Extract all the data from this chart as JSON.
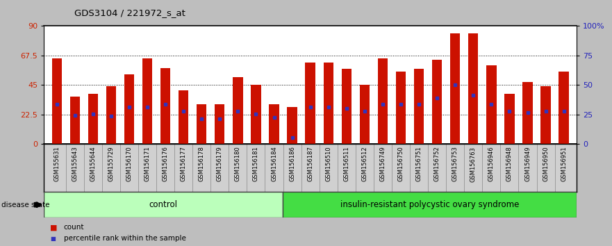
{
  "title": "GDS3104 / 221972_s_at",
  "samples": [
    "GSM155631",
    "GSM155643",
    "GSM155644",
    "GSM155729",
    "GSM156170",
    "GSM156171",
    "GSM156176",
    "GSM156177",
    "GSM156178",
    "GSM156179",
    "GSM156180",
    "GSM156181",
    "GSM156184",
    "GSM156186",
    "GSM156187",
    "GSM156510",
    "GSM156511",
    "GSM156512",
    "GSM156749",
    "GSM156750",
    "GSM156751",
    "GSM156752",
    "GSM156753",
    "GSM156763",
    "GSM156946",
    "GSM156948",
    "GSM156949",
    "GSM156950",
    "GSM156951"
  ],
  "bar_values": [
    65,
    36,
    38,
    44,
    53,
    65,
    58,
    41,
    30,
    30,
    51,
    45,
    30,
    28,
    62,
    62,
    57,
    45,
    65,
    55,
    57,
    64,
    84,
    84,
    60,
    38,
    47,
    44,
    55
  ],
  "blue_markers": [
    30,
    22,
    23,
    21,
    28,
    28,
    30,
    25,
    19,
    19,
    25,
    23,
    20,
    5,
    28,
    28,
    27,
    25,
    30,
    30,
    30,
    35,
    45,
    37,
    30,
    25,
    24,
    25,
    25
  ],
  "n_control": 13,
  "ymax": 90,
  "ymin": 0,
  "left_yticks": [
    0,
    22.5,
    45,
    67.5,
    90
  ],
  "left_yticklabels": [
    "0",
    "22.5",
    "45",
    "67.5",
    "90"
  ],
  "right_yticks": [
    0,
    22.5,
    45,
    67.5,
    90
  ],
  "right_yticklabels": [
    "0",
    "25",
    "50",
    "75",
    "100%"
  ],
  "grid_lines": [
    22.5,
    45,
    67.5
  ],
  "bar_color": "#CC1100",
  "blue_color": "#3333BB",
  "control_color": "#BBFFBB",
  "disease_color": "#44DD44",
  "plot_bg": "#FFFFFF",
  "fig_bg": "#BEBEBE",
  "xtick_bg": "#D0D0D0",
  "control_label": "control",
  "disease_label": "insulin-resistant polycystic ovary syndrome",
  "disease_state_label": "disease state",
  "legend_count": "count",
  "legend_percentile": "percentile rank within the sample"
}
